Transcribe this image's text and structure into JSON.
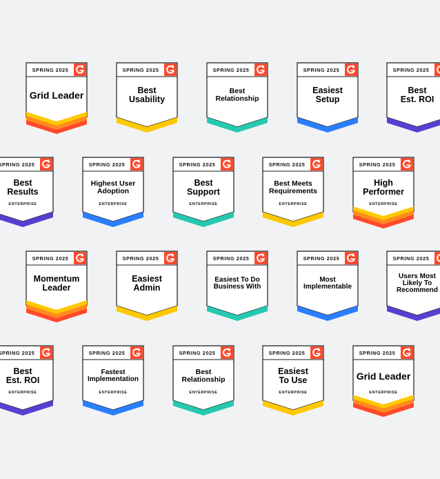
{
  "colors": {
    "g2_red": "#ff492c",
    "stripe_yellow": "#ffc800",
    "stripe_orange": "#ff8a1f",
    "stripe_red": "#ff492c",
    "stripe_blue": "#2a7fff",
    "stripe_teal": "#26c9b0",
    "stripe_purple": "#5a3ed1"
  },
  "icon": "g2-logo-icon",
  "badges": [
    {
      "season": "SPRING 2025",
      "title": "Grid Leader",
      "subtitle": "",
      "stripe": "triple"
    },
    {
      "season": "SPRING 2025",
      "title": "Best\nUsability",
      "subtitle": "",
      "stripe": "yellow"
    },
    {
      "season": "SPRING 2025",
      "title": "Best\nRelationship",
      "subtitle": "",
      "stripe": "teal"
    },
    {
      "season": "SPRING 2025",
      "title": "Easiest\nSetup",
      "subtitle": "",
      "stripe": "blue"
    },
    {
      "season": "SPRING 2025",
      "title": "Best\nEst. ROI",
      "subtitle": "",
      "stripe": "purple"
    },
    {
      "season": "SPRING 2025",
      "title": "Best\nResults",
      "subtitle": "ENTERPRISE",
      "stripe": "purple"
    },
    {
      "season": "SPRING 2025",
      "title": "Highest User\nAdoption",
      "subtitle": "ENTERPRISE",
      "stripe": "blue"
    },
    {
      "season": "SPRING 2025",
      "title": "Best\nSupport",
      "subtitle": "ENTERPRISE",
      "stripe": "teal"
    },
    {
      "season": "SPRING 2025",
      "title": "Best Meets\nRequirements",
      "subtitle": "ENTERPRISE",
      "stripe": "yellow"
    },
    {
      "season": "SPRING 2025",
      "title": "High\nPerformer",
      "subtitle": "ENTERPRISE",
      "stripe": "triple"
    },
    {
      "season": "SPRING 2025",
      "title": "Momentum\nLeader",
      "subtitle": "",
      "stripe": "triple"
    },
    {
      "season": "SPRING 2025",
      "title": "Easiest\nAdmin",
      "subtitle": "",
      "stripe": "yellow"
    },
    {
      "season": "SPRING 2025",
      "title": "Easiest To Do\nBusiness With",
      "subtitle": "",
      "stripe": "teal"
    },
    {
      "season": "SPRING 2025",
      "title": "Most\nImplementable",
      "subtitle": "",
      "stripe": "blue"
    },
    {
      "season": "SPRING 2025",
      "title": "Users Most\nLikely To\nRecommend",
      "subtitle": "",
      "stripe": "purple"
    },
    {
      "season": "SPRING 2025",
      "title": "Best\nEst. ROI",
      "subtitle": "ENTERPRISE",
      "stripe": "purple"
    },
    {
      "season": "SPRING 2025",
      "title": "Fastest\nImplementation",
      "subtitle": "ENTERPRISE",
      "stripe": "blue"
    },
    {
      "season": "SPRING 2025",
      "title": "Best\nRelationship",
      "subtitle": "ENTERPRISE",
      "stripe": "teal"
    },
    {
      "season": "SPRING 2025",
      "title": "Easiest\nTo Use",
      "subtitle": "ENTERPRISE",
      "stripe": "yellow"
    },
    {
      "season": "SPRING 2025",
      "title": "Grid Leader",
      "subtitle": "ENTERPRISE",
      "stripe": "triple"
    }
  ]
}
